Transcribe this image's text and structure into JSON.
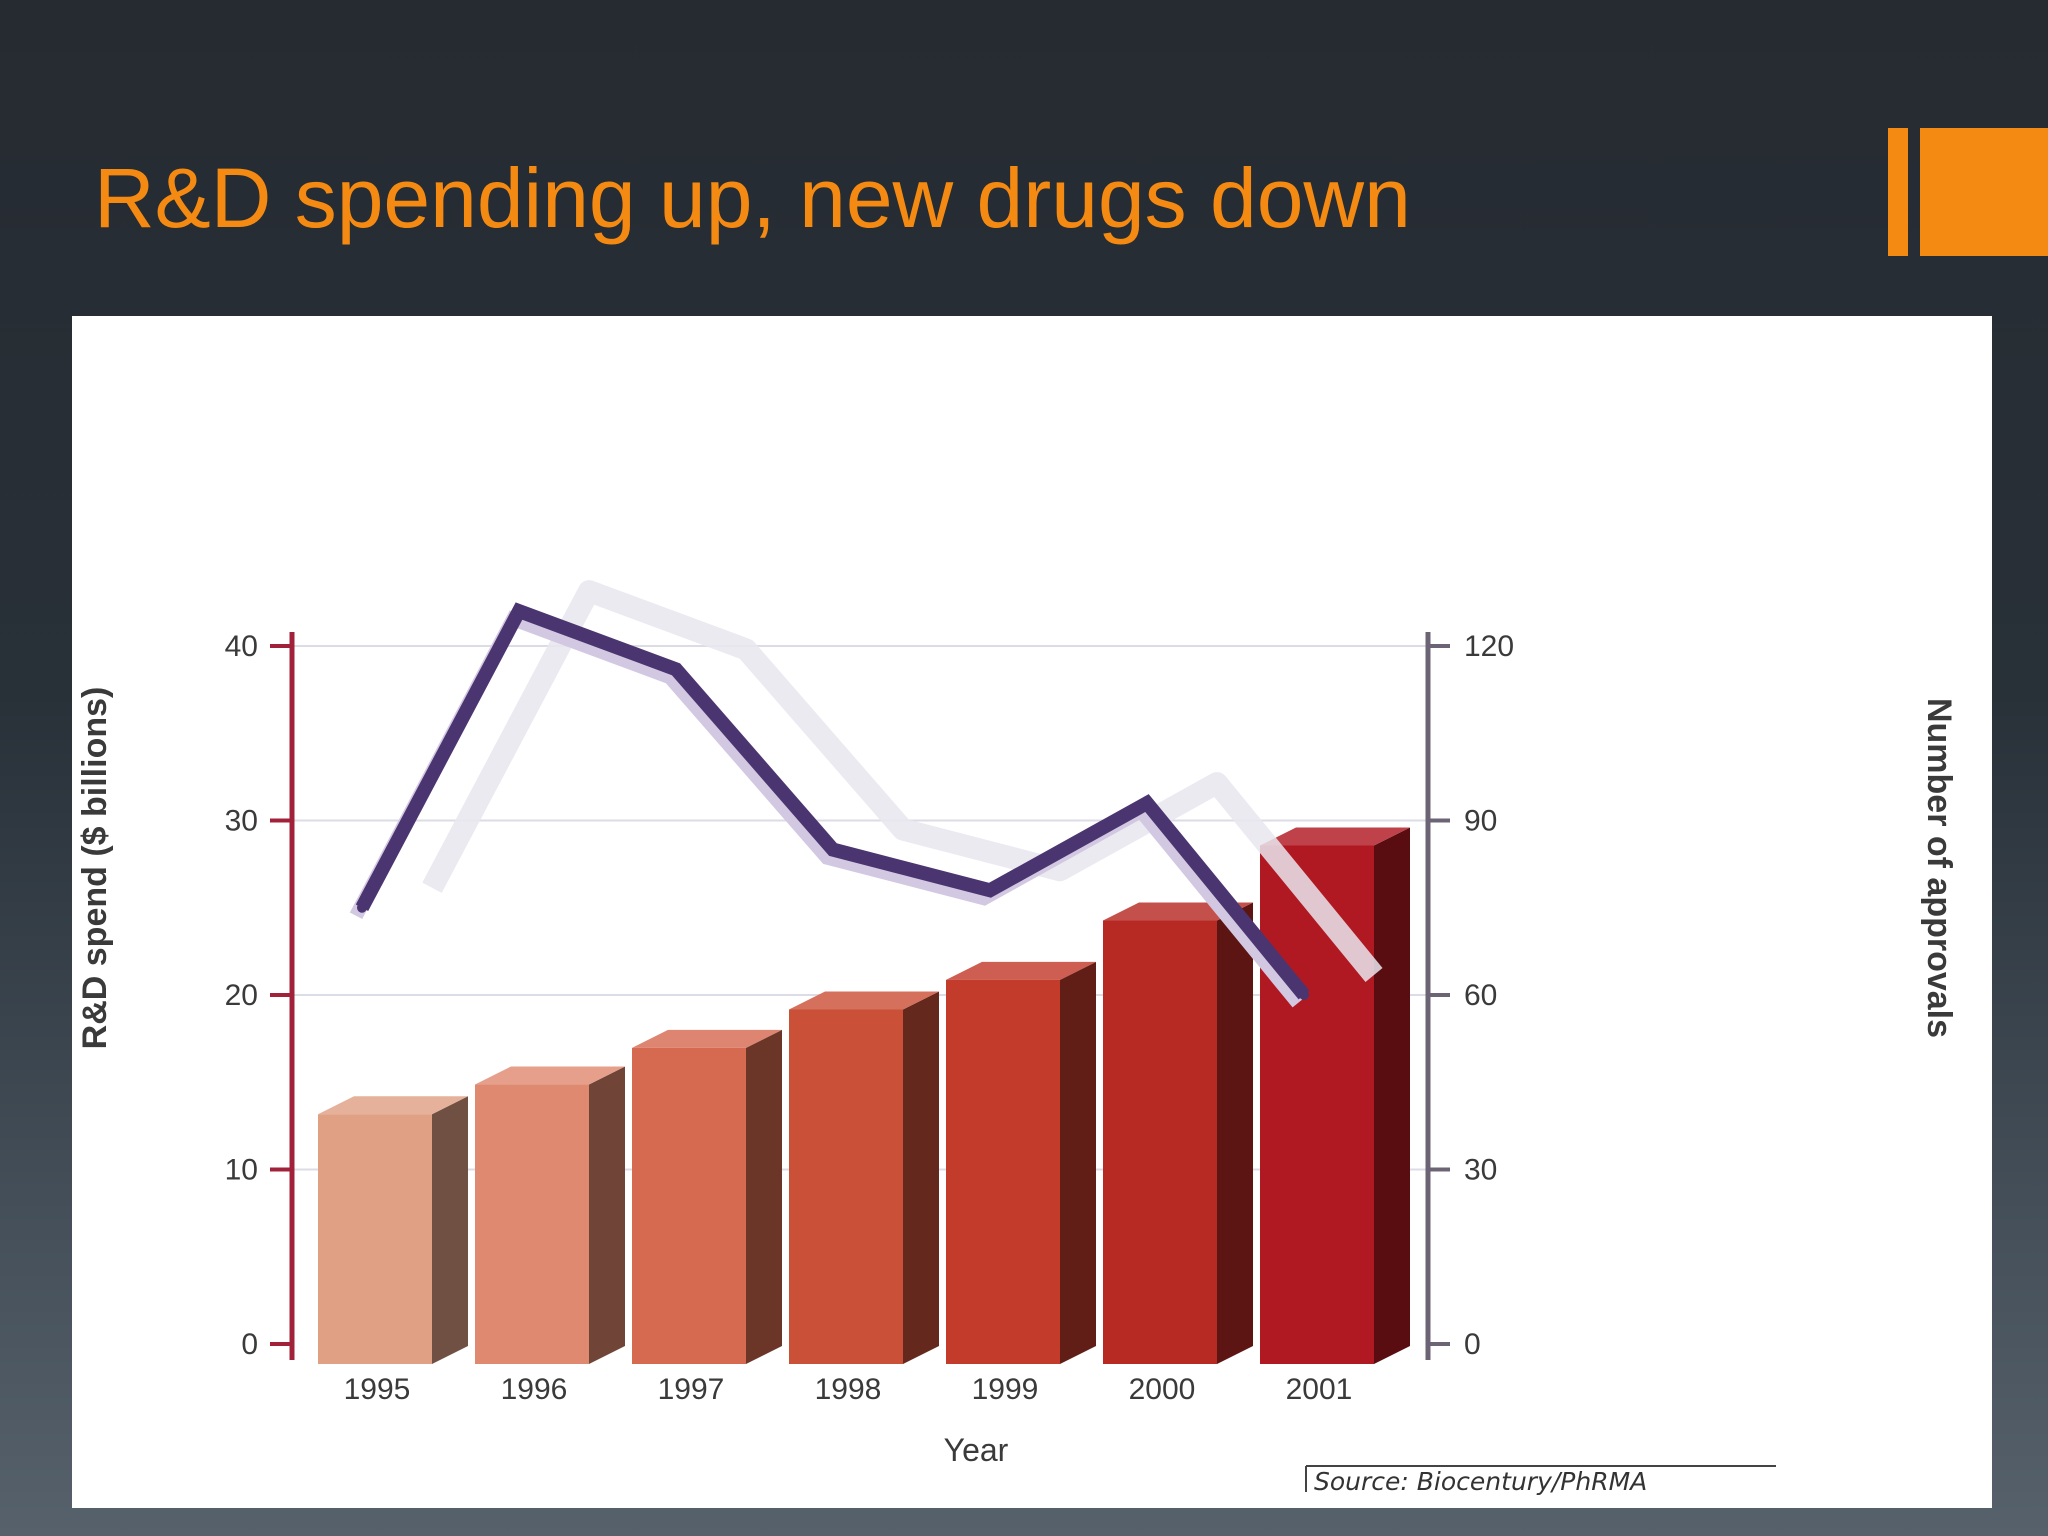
{
  "slide": {
    "title": "R&D spending up, new drugs down",
    "accent_color": "#f58a12"
  },
  "chart_data": {
    "type": "bar",
    "categories": [
      "1995",
      "1996",
      "1997",
      "1998",
      "1999",
      "2000",
      "2001"
    ],
    "series": [
      {
        "name": "R&D spend",
        "type": "bar",
        "axis": "left",
        "values": [
          14.2,
          15.9,
          18.0,
          20.2,
          21.9,
          25.3,
          29.6
        ],
        "colors": [
          "#e0a084",
          "#df8a70",
          "#d56a50",
          "#ca5038",
          "#c23b2b",
          "#b72a24",
          "#b11922"
        ]
      },
      {
        "name": "Number of approvals",
        "type": "line",
        "axis": "right",
        "values": [
          75,
          126,
          116,
          85,
          78,
          93,
          60
        ],
        "color": "#4b3570"
      }
    ],
    "title": "",
    "xlabel": "Year",
    "ylabel": "R&D spend ($ billions)",
    "y2label": "Number of approvals",
    "ylim": [
      0,
      40
    ],
    "y2lim": [
      0,
      120
    ],
    "yticks": [
      "0",
      "10",
      "20",
      "30",
      "40"
    ],
    "y2ticks": [
      "0",
      "30",
      "60",
      "90",
      "120"
    ],
    "grid": true,
    "source": "Source: Biocentury/PhRMA"
  }
}
